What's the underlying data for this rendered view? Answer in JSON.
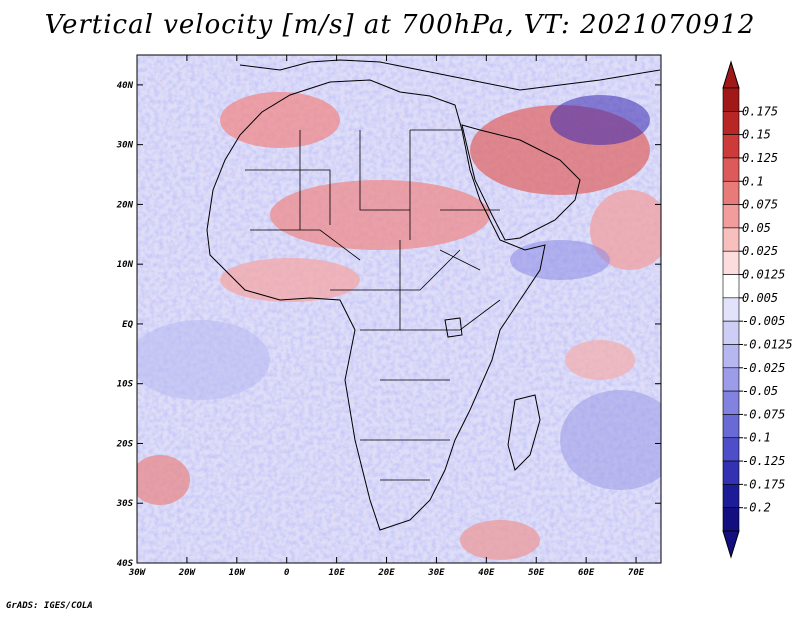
{
  "title": "Vertical velocity [m/s] at 700hPa, VT: 2021070912",
  "credit": "GrADS: IGES/COLA",
  "map": {
    "lat_labels": [
      "40N",
      "30N",
      "20N",
      "10N",
      "EQ",
      "10S",
      "20S",
      "30S",
      "40S"
    ],
    "lon_labels": [
      "30W",
      "20W",
      "10W",
      "0",
      "10E",
      "20E",
      "30E",
      "40E",
      "50E",
      "60E",
      "70E"
    ],
    "lat_range": [
      -40,
      45
    ],
    "lon_range": [
      -30,
      75
    ]
  },
  "colorbar": {
    "labels": [
      "0.175",
      "0.15",
      "0.125",
      "0.1",
      "0.075",
      "0.05",
      "0.025",
      "0.0125",
      "0.005",
      "-0.005",
      "-0.0125",
      "-0.025",
      "-0.05",
      "-0.075",
      "-0.1",
      "-0.125",
      "-0.175",
      "-0.2"
    ],
    "colors": [
      "#a01818",
      "#b82626",
      "#cc3a3a",
      "#dc5a5a",
      "#e87a7a",
      "#f29c9c",
      "#f8bfbf",
      "#fcdcdc",
      "#ffffff",
      "#e2e2fb",
      "#cdcdf6",
      "#b6b6f0",
      "#9c9ce9",
      "#8282e0",
      "#6a6ad6",
      "#4e4ec8",
      "#3232b2",
      "#1c1c96",
      "#140f80"
    ],
    "top_arrow_color": "#a01818",
    "bottom_arrow_color": "#140f80"
  }
}
